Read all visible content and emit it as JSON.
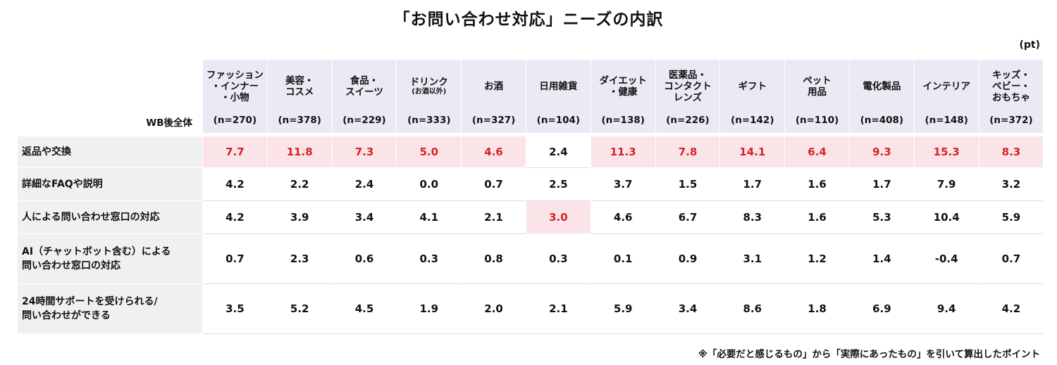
{
  "title": "「お問い合わせ対応」ニーズの内訳",
  "unit": "(pt)",
  "base_label": "WB後全体",
  "footnote": "※「必要だと感じるもの」から「実際にあったもの」を引いて算出したポイント",
  "colors": {
    "header_bg": "#eaeaf4",
    "highlight_bg": "#fbe4e7",
    "highlight_text": "#d6202b",
    "label_bg": "#f0f0f0"
  },
  "chart_data": {
    "type": "table",
    "columns": [
      {
        "name": "ファッション\n・インナー\n・小物",
        "sub": "",
        "n": "(n=270)"
      },
      {
        "name": "美容・\nコスメ",
        "sub": "",
        "n": "(n=378)"
      },
      {
        "name": "食品・\nスイーツ",
        "sub": "",
        "n": "(n=229)"
      },
      {
        "name": "ドリンク",
        "sub": "(お酒以外)",
        "n": "(n=333)"
      },
      {
        "name": "お酒",
        "sub": "",
        "n": "(n=327)"
      },
      {
        "name": "日用雑貨",
        "sub": "",
        "n": "(n=104)"
      },
      {
        "name": "ダイエット\n・健康",
        "sub": "",
        "n": "(n=138)"
      },
      {
        "name": "医薬品・\nコンタクト\nレンズ",
        "sub": "",
        "n": "(n=226)"
      },
      {
        "name": "ギフト",
        "sub": "",
        "n": "(n=142)"
      },
      {
        "name": "ペット\n用品",
        "sub": "",
        "n": "(n=110)"
      },
      {
        "name": "電化製品",
        "sub": "",
        "n": "(n=408)"
      },
      {
        "name": "インテリア",
        "sub": "",
        "n": "(n=148)"
      },
      {
        "name": "キッズ・\nベビー・\nおもちゃ",
        "sub": "",
        "n": "(n=372)"
      }
    ],
    "rows": [
      {
        "label": "返品や交換",
        "values": [
          "7.7",
          "11.8",
          "7.3",
          "5.0",
          "4.6",
          "2.4",
          "11.3",
          "7.8",
          "14.1",
          "6.4",
          "9.3",
          "15.3",
          "8.3"
        ],
        "highlight": [
          true,
          true,
          true,
          true,
          true,
          false,
          true,
          true,
          true,
          true,
          true,
          true,
          true
        ]
      },
      {
        "label": "詳細なFAQや説明",
        "values": [
          "4.2",
          "2.2",
          "2.4",
          "0.0",
          "0.7",
          "2.5",
          "3.7",
          "1.5",
          "1.7",
          "1.6",
          "1.7",
          "7.9",
          "3.2"
        ],
        "highlight": [
          false,
          false,
          false,
          false,
          false,
          false,
          false,
          false,
          false,
          false,
          false,
          false,
          false
        ]
      },
      {
        "label": "人による問い合わせ窓口の対応",
        "values": [
          "4.2",
          "3.9",
          "3.4",
          "4.1",
          "2.1",
          "3.0",
          "4.6",
          "6.7",
          "8.3",
          "1.6",
          "5.3",
          "10.4",
          "5.9"
        ],
        "highlight": [
          false,
          false,
          false,
          false,
          false,
          true,
          false,
          false,
          false,
          false,
          false,
          false,
          false
        ]
      },
      {
        "label": "AI（チャットボット含む）による\n問い合わせ窓口の対応",
        "values": [
          "0.7",
          "2.3",
          "0.6",
          "0.3",
          "0.8",
          "0.3",
          "0.1",
          "0.9",
          "3.1",
          "1.2",
          "1.4",
          "-0.4",
          "0.7"
        ],
        "highlight": [
          false,
          false,
          false,
          false,
          false,
          false,
          false,
          false,
          false,
          false,
          false,
          false,
          false
        ]
      },
      {
        "label": "24時間サポートを受けられる/\n問い合わせができる",
        "values": [
          "3.5",
          "5.2",
          "4.5",
          "1.9",
          "2.0",
          "2.1",
          "5.9",
          "3.4",
          "8.6",
          "1.8",
          "6.9",
          "9.4",
          "4.2"
        ],
        "highlight": [
          false,
          false,
          false,
          false,
          false,
          false,
          false,
          false,
          false,
          false,
          false,
          false,
          false
        ]
      }
    ]
  }
}
